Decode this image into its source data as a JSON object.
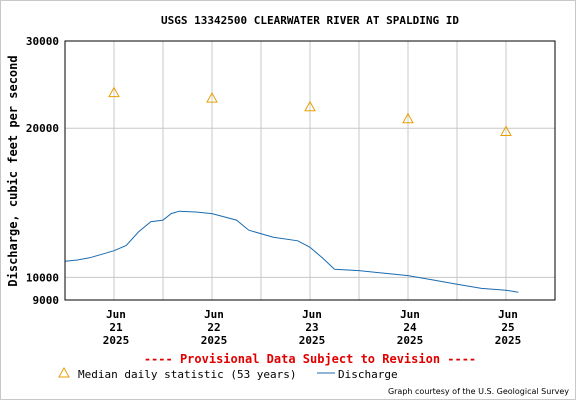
{
  "chart_data": {
    "type": "line",
    "title": "USGS 13342500 CLEARWATER RIVER AT SPALDING ID",
    "ylabel": "Discharge, cubic feet per second",
    "xlabel": "",
    "yscale": "log",
    "ylim": [
      9000,
      30000
    ],
    "yticks": [
      {
        "value": 9000,
        "label": "9000"
      },
      {
        "value": 10000,
        "label": "10000"
      },
      {
        "value": 20000,
        "label": "20000"
      },
      {
        "value": 30000,
        "label": "30000"
      }
    ],
    "xlim": [
      "2025-06-20T12:00",
      "2025-06-25T12:00"
    ],
    "xticks": [
      {
        "value": "2025-06-21T00:00",
        "label": [
          "Jun",
          "21",
          "2025"
        ]
      },
      {
        "value": "2025-06-22T00:00",
        "label": [
          "Jun",
          "22",
          "2025"
        ]
      },
      {
        "value": "2025-06-23T00:00",
        "label": [
          "Jun",
          "23",
          "2025"
        ]
      },
      {
        "value": "2025-06-24T00:00",
        "label": [
          "Jun",
          "24",
          "2025"
        ]
      },
      {
        "value": "2025-06-25T00:00",
        "label": [
          "Jun",
          "25",
          "2025"
        ]
      }
    ],
    "grid": true,
    "series": [
      {
        "name": "Median daily statistic (53 years)",
        "type": "scatter",
        "marker": "triangle",
        "color": "#e8a000",
        "points": [
          {
            "x": "2025-06-21T00:00",
            "y": 23600
          },
          {
            "x": "2025-06-22T00:00",
            "y": 23000
          },
          {
            "x": "2025-06-23T00:00",
            "y": 22100
          },
          {
            "x": "2025-06-24T00:00",
            "y": 20900
          },
          {
            "x": "2025-06-25T00:00",
            "y": 19700
          }
        ]
      },
      {
        "name": "Discharge",
        "type": "line",
        "color": "#1a6bb0",
        "points": [
          {
            "x": "2025-06-20T12:00",
            "y": 10780
          },
          {
            "x": "2025-06-20T15:00",
            "y": 10840
          },
          {
            "x": "2025-06-20T18:00",
            "y": 10950
          },
          {
            "x": "2025-06-20T21:00",
            "y": 11130
          },
          {
            "x": "2025-06-21T00:00",
            "y": 11320
          },
          {
            "x": "2025-06-21T03:00",
            "y": 11600
          },
          {
            "x": "2025-06-21T06:00",
            "y": 12350
          },
          {
            "x": "2025-06-21T09:00",
            "y": 12950
          },
          {
            "x": "2025-06-21T12:00",
            "y": 13050
          },
          {
            "x": "2025-06-21T14:00",
            "y": 13450
          },
          {
            "x": "2025-06-21T16:00",
            "y": 13600
          },
          {
            "x": "2025-06-21T20:00",
            "y": 13550
          },
          {
            "x": "2025-06-22T00:00",
            "y": 13450
          },
          {
            "x": "2025-06-22T06:00",
            "y": 13050
          },
          {
            "x": "2025-06-22T09:00",
            "y": 12450
          },
          {
            "x": "2025-06-22T15:00",
            "y": 12050
          },
          {
            "x": "2025-06-22T21:00",
            "y": 11850
          },
          {
            "x": "2025-06-23T00:00",
            "y": 11500
          },
          {
            "x": "2025-06-23T03:00",
            "y": 10950
          },
          {
            "x": "2025-06-23T06:00",
            "y": 10380
          },
          {
            "x": "2025-06-23T12:00",
            "y": 10320
          },
          {
            "x": "2025-06-23T18:00",
            "y": 10200
          },
          {
            "x": "2025-06-24T00:00",
            "y": 10080
          },
          {
            "x": "2025-06-24T06:00",
            "y": 9880
          },
          {
            "x": "2025-06-24T12:00",
            "y": 9680
          },
          {
            "x": "2025-06-24T18:00",
            "y": 9500
          },
          {
            "x": "2025-06-25T00:00",
            "y": 9420
          },
          {
            "x": "2025-06-25T03:00",
            "y": 9330
          }
        ]
      }
    ],
    "annotations": [
      "---- Provisional Data Subject to Revision ----"
    ],
    "legend_position": "bottom-left"
  },
  "footer": {
    "provisional": "---- Provisional Data Subject to Revision ----",
    "legend_median": "Median daily statistic (53 years)",
    "legend_discharge": "Discharge",
    "courtesy": "Graph courtesy of the U.S. Geological Survey"
  },
  "colors": {
    "grid": "#c8c8c8",
    "median": "#e8a000",
    "discharge": "#1a6bb0",
    "provisional": "#e00000"
  }
}
